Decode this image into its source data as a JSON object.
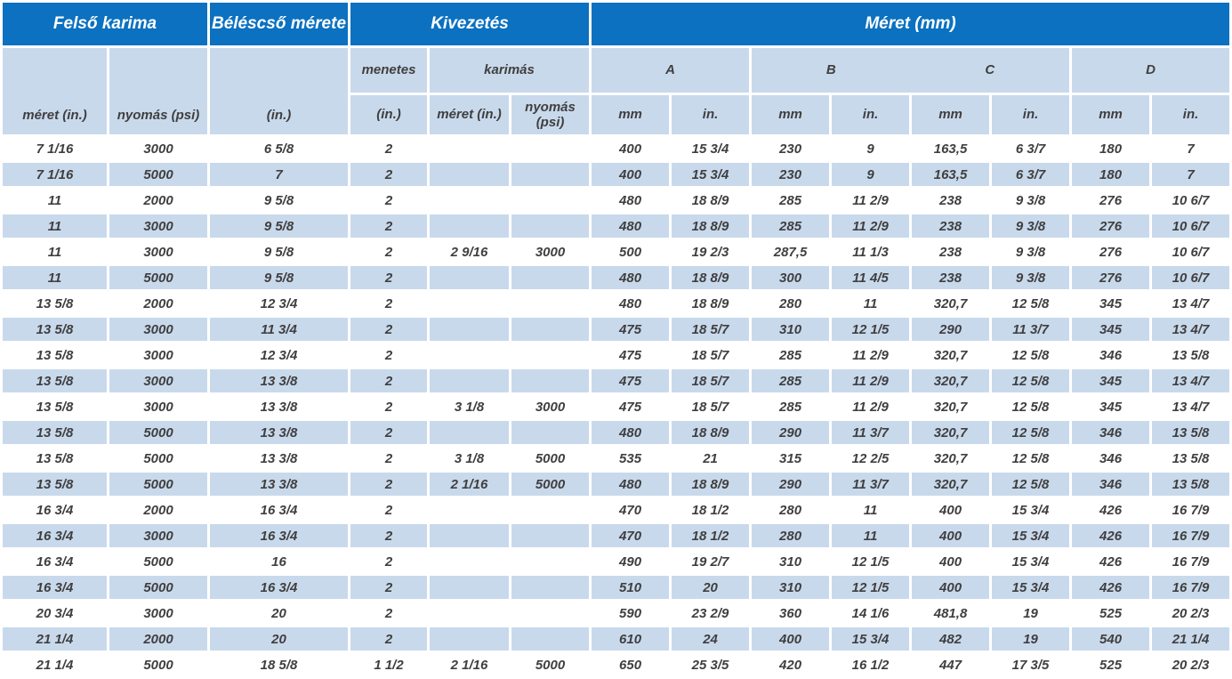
{
  "colors": {
    "header_blue": "#0b71c0",
    "light_blue": "#c9d9ec",
    "text_dark": "#3f3f3f",
    "background": "#ffffff"
  },
  "table": {
    "header": {
      "felso_karima": "Felső karima",
      "belescso": "Béléscső mérete",
      "kivezetes": "Kivezetés",
      "meret_mm": "Méret (mm)",
      "menetes": "menetes",
      "karimas": "karimás",
      "meret_in": "méret (in.)",
      "nyomas_psi": "nyomás (psi)",
      "in_unit": "(in.)",
      "groups": [
        "A",
        "B",
        "C",
        "D"
      ],
      "mm": "mm",
      "in_dot": "in."
    },
    "rows": [
      [
        "7 1/16",
        "3000",
        "6 5/8",
        "2",
        "",
        "",
        "400",
        "15 3/4",
        "230",
        "9",
        "163,5",
        "6 3/7",
        "180",
        "7"
      ],
      [
        "7 1/16",
        "5000",
        "7",
        "2",
        "",
        "",
        "400",
        "15 3/4",
        "230",
        "9",
        "163,5",
        "6 3/7",
        "180",
        "7"
      ],
      [
        "11",
        "2000",
        "9 5/8",
        "2",
        "",
        "",
        "480",
        "18 8/9",
        "285",
        "11 2/9",
        "238",
        "9 3/8",
        "276",
        "10 6/7"
      ],
      [
        "11",
        "3000",
        "9 5/8",
        "2",
        "",
        "",
        "480",
        "18 8/9",
        "285",
        "11 2/9",
        "238",
        "9 3/8",
        "276",
        "10 6/7"
      ],
      [
        "11",
        "3000",
        "9 5/8",
        "2",
        "2 9/16",
        "3000",
        "500",
        "19 2/3",
        "287,5",
        "11 1/3",
        "238",
        "9 3/8",
        "276",
        "10 6/7"
      ],
      [
        "11",
        "5000",
        "9 5/8",
        "2",
        "",
        "",
        "480",
        "18 8/9",
        "300",
        "11 4/5",
        "238",
        "9 3/8",
        "276",
        "10 6/7"
      ],
      [
        "13 5/8",
        "2000",
        "12 3/4",
        "2",
        "",
        "",
        "480",
        "18 8/9",
        "280",
        "11",
        "320,7",
        "12 5/8",
        "345",
        "13 4/7"
      ],
      [
        "13 5/8",
        "3000",
        "11 3/4",
        "2",
        "",
        "",
        "475",
        "18 5/7",
        "310",
        "12 1/5",
        "290",
        "11 3/7",
        "345",
        "13 4/7"
      ],
      [
        "13 5/8",
        "3000",
        "12 3/4",
        "2",
        "",
        "",
        "475",
        "18 5/7",
        "285",
        "11 2/9",
        "320,7",
        "12 5/8",
        "346",
        "13 5/8"
      ],
      [
        "13 5/8",
        "3000",
        "13 3/8",
        "2",
        "",
        "",
        "475",
        "18 5/7",
        "285",
        "11 2/9",
        "320,7",
        "12 5/8",
        "345",
        "13 4/7"
      ],
      [
        "13 5/8",
        "3000",
        "13 3/8",
        "2",
        "3 1/8",
        "3000",
        "475",
        "18 5/7",
        "285",
        "11 2/9",
        "320,7",
        "12 5/8",
        "345",
        "13 4/7"
      ],
      [
        "13 5/8",
        "5000",
        "13 3/8",
        "2",
        "",
        "",
        "480",
        "18 8/9",
        "290",
        "11 3/7",
        "320,7",
        "12 5/8",
        "346",
        "13 5/8"
      ],
      [
        "13 5/8",
        "5000",
        "13 3/8",
        "2",
        "3 1/8",
        "5000",
        "535",
        "21",
        "315",
        "12 2/5",
        "320,7",
        "12 5/8",
        "346",
        "13 5/8"
      ],
      [
        "13 5/8",
        "5000",
        "13 3/8",
        "2",
        "2 1/16",
        "5000",
        "480",
        "18 8/9",
        "290",
        "11 3/7",
        "320,7",
        "12 5/8",
        "346",
        "13 5/8"
      ],
      [
        "16 3/4",
        "2000",
        "16 3/4",
        "2",
        "",
        "",
        "470",
        "18 1/2",
        "280",
        "11",
        "400",
        "15 3/4",
        "426",
        "16 7/9"
      ],
      [
        "16 3/4",
        "3000",
        "16 3/4",
        "2",
        "",
        "",
        "470",
        "18 1/2",
        "280",
        "11",
        "400",
        "15 3/4",
        "426",
        "16 7/9"
      ],
      [
        "16 3/4",
        "5000",
        "16",
        "2",
        "",
        "",
        "490",
        "19 2/7",
        "310",
        "12 1/5",
        "400",
        "15 3/4",
        "426",
        "16 7/9"
      ],
      [
        "16 3/4",
        "5000",
        "16 3/4",
        "2",
        "",
        "",
        "510",
        "20",
        "310",
        "12 1/5",
        "400",
        "15 3/4",
        "426",
        "16 7/9"
      ],
      [
        "20 3/4",
        "3000",
        "20",
        "2",
        "",
        "",
        "590",
        "23 2/9",
        "360",
        "14 1/6",
        "481,8",
        "19",
        "525",
        "20 2/3"
      ],
      [
        "21 1/4",
        "2000",
        "20",
        "2",
        "",
        "",
        "610",
        "24",
        "400",
        "15 3/4",
        "482",
        "19",
        "540",
        "21 1/4"
      ],
      [
        "21 1/4",
        "5000",
        "18 5/8",
        "1 1/2",
        "2 1/16",
        "5000",
        "650",
        "25 3/5",
        "420",
        "16 1/2",
        "447",
        "17 3/5",
        "525",
        "20 2/3"
      ]
    ]
  }
}
